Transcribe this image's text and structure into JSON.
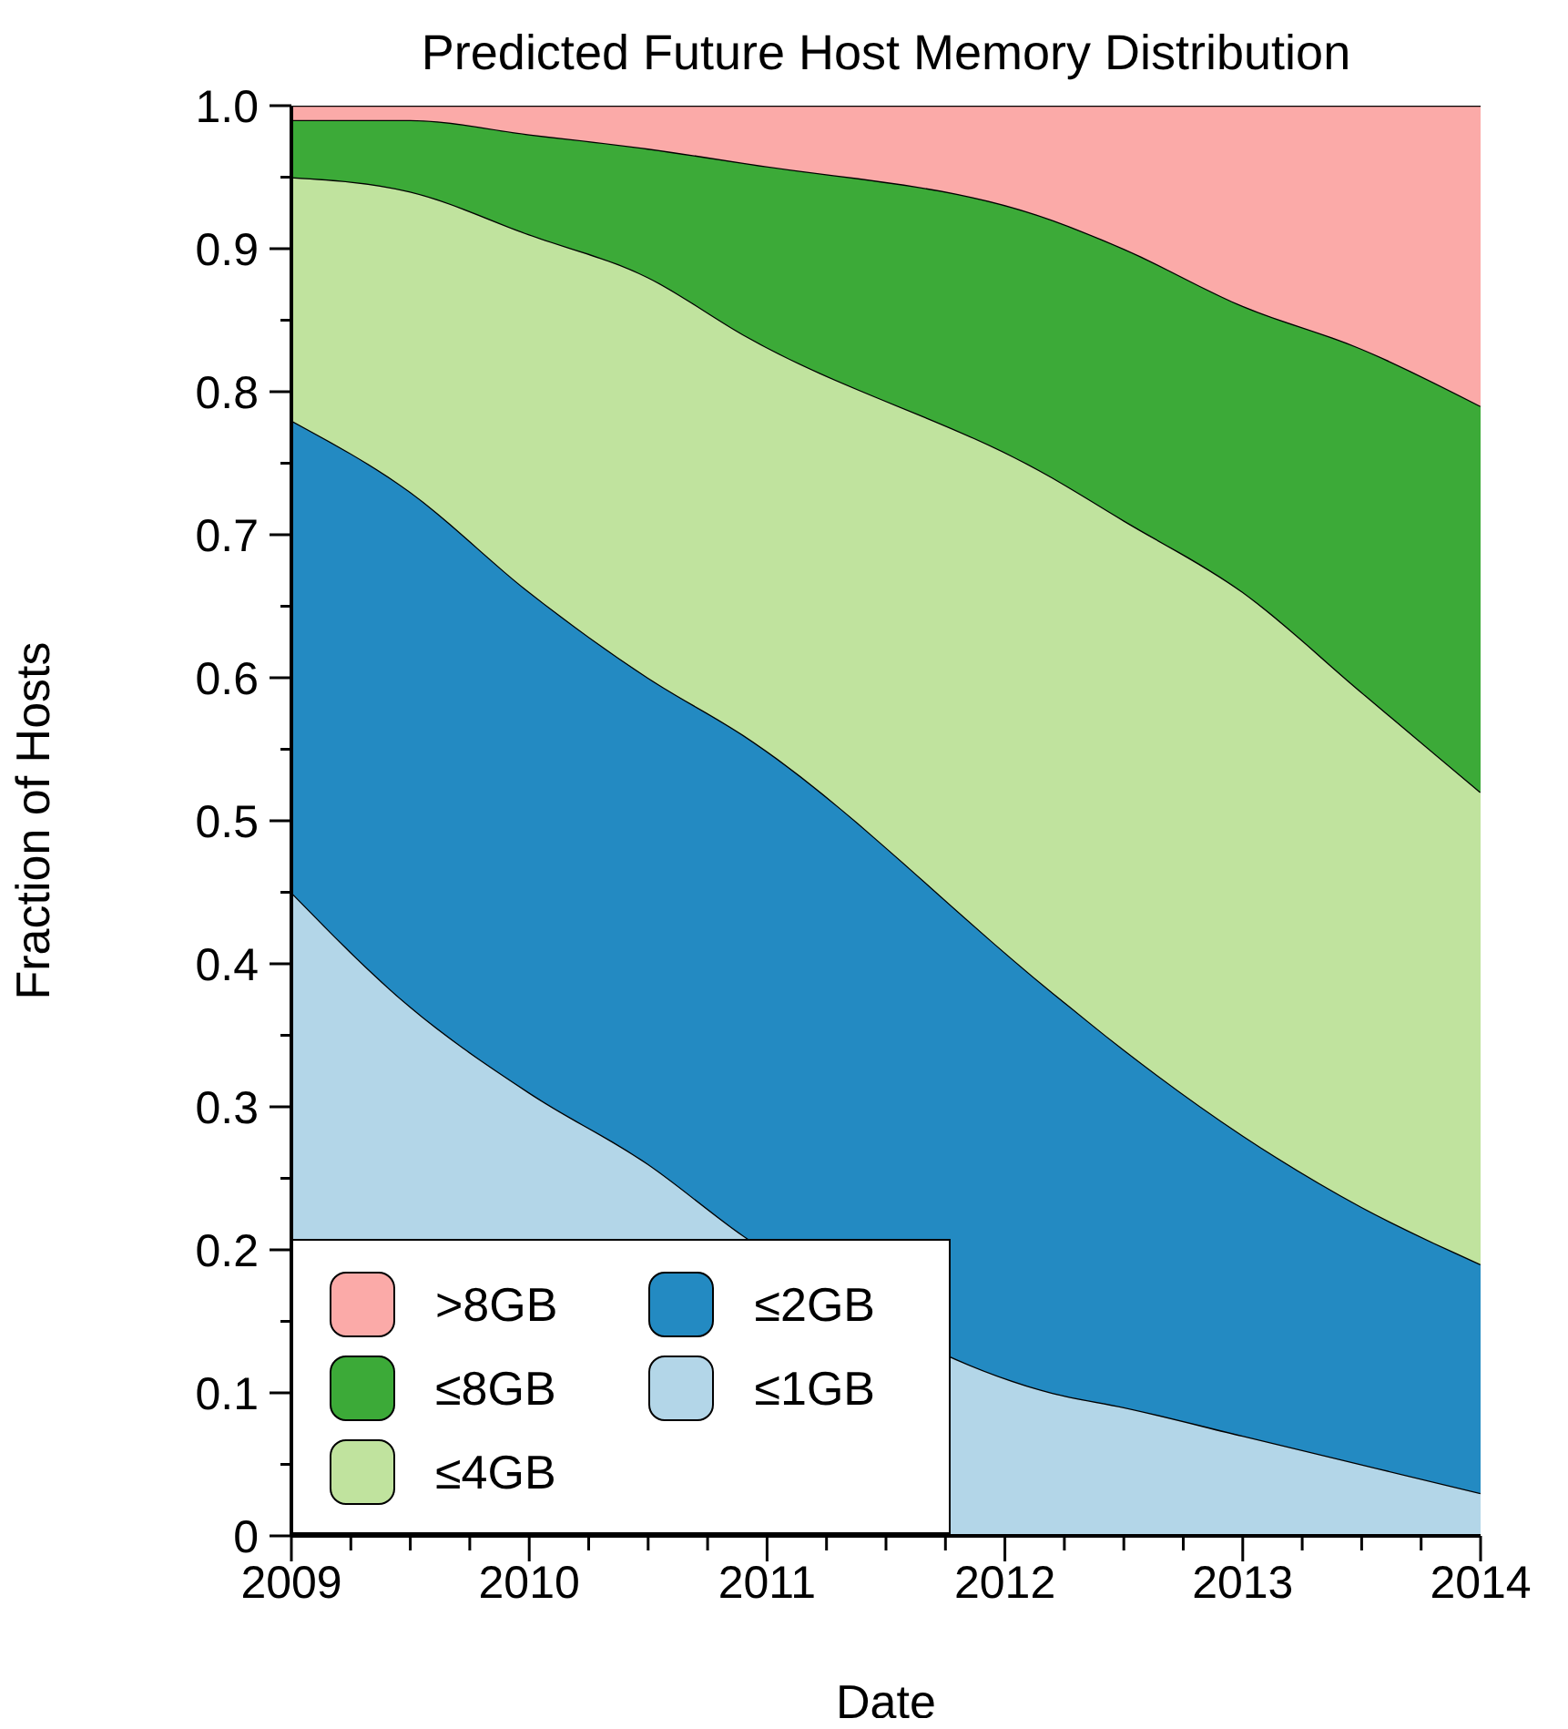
{
  "chart_data": {
    "type": "area",
    "title": "Predicted Future Host Memory Distribution",
    "xlabel": "Date",
    "ylabel": "Fraction of Hosts",
    "stacked": true,
    "legend": "bottom left",
    "grid": false,
    "x": [
      2009,
      2009.5,
      2010,
      2010.5,
      2010.9,
      2012.2,
      2012.5,
      2013,
      2013.5,
      2014
    ],
    "series": [
      {
        "name": "≤1GB",
        "color": "#b3d6e8",
        "values": [
          0.45,
          0.37,
          0.31,
          0.26,
          0.21,
          0.1,
          0.09,
          0.07,
          0.05,
          0.03
        ]
      },
      {
        "name": "≤2GB",
        "color": "#238ac2",
        "values": [
          0.33,
          0.36,
          0.35,
          0.34,
          0.35,
          0.28,
          0.25,
          0.21,
          0.18,
          0.16
        ]
      },
      {
        "name": "≤4GB",
        "color": "#c0e39e",
        "values": [
          0.17,
          0.21,
          0.25,
          0.28,
          0.28,
          0.36,
          0.37,
          0.38,
          0.36,
          0.33
        ]
      },
      {
        "name": "≤8GB",
        "color": "#3caa38",
        "values": [
          0.04,
          0.05,
          0.07,
          0.09,
          0.12,
          0.18,
          0.19,
          0.2,
          0.24,
          0.27
        ]
      },
      {
        "name": ">8GB",
        "color": "#fbaaa8",
        "values": [
          0.01,
          0.01,
          0.02,
          0.03,
          0.04,
          0.08,
          0.1,
          0.14,
          0.17,
          0.21
        ]
      }
    ],
    "xlim": [
      2009,
      2014
    ],
    "xticks": [
      2009,
      {
        "value": 2009.25,
        "label": null
      },
      {
        "value": 2009.5,
        "label": null
      },
      {
        "value": 2009.75,
        "label": null
      },
      2010,
      {
        "value": 2010.25,
        "label": null
      },
      {
        "value": 2010.5,
        "label": null
      },
      {
        "value": 2010.75,
        "label": null
      },
      2011,
      {
        "value": 2011.25,
        "label": null
      },
      {
        "value": 2011.5,
        "label": null
      },
      {
        "value": 2011.75,
        "label": null
      },
      2012,
      {
        "value": 2012.25,
        "label": null
      },
      {
        "value": 2012.5,
        "label": null
      },
      {
        "value": 2012.75,
        "label": null
      },
      2013,
      {
        "value": 2013.25,
        "label": null
      },
      {
        "value": 2013.5,
        "label": null
      },
      {
        "value": 2013.75,
        "label": null
      },
      2014
    ],
    "ylim": [
      0,
      1
    ],
    "yticks": [
      0,
      {
        "value": 0.05,
        "label": null
      },
      0.1,
      {
        "value": 0.15,
        "label": null
      },
      0.2,
      {
        "value": 0.25,
        "label": null
      },
      0.3,
      {
        "value": 0.35,
        "label": null
      },
      0.4,
      {
        "value": 0.45,
        "label": null
      },
      0.5,
      {
        "value": 0.55,
        "label": null
      },
      0.6,
      {
        "value": 0.65,
        "label": null
      },
      0.7,
      {
        "value": 0.75,
        "label": null
      },
      0.8,
      {
        "value": 0.85,
        "label": null
      },
      0.9,
      {
        "value": 0.95,
        "label": null
      },
      {
        "value": 1,
        "label": "1.0"
      }
    ]
  }
}
